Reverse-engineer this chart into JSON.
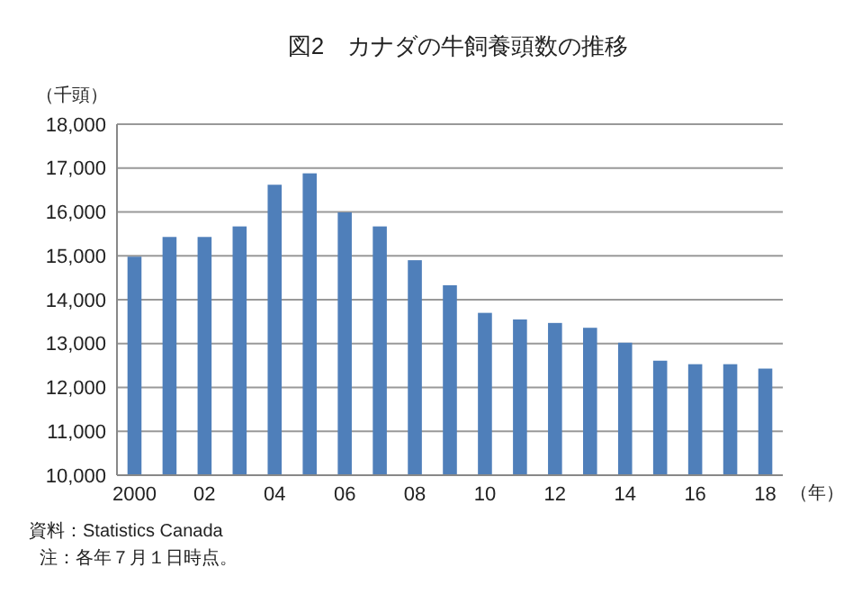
{
  "chart_data": {
    "type": "bar",
    "title": "図2　カナダの牛飼養頭数の推移",
    "ylabel": "（千頭）",
    "xlabel": "（年）",
    "categories": [
      "2000",
      null,
      "02",
      null,
      "04",
      null,
      "06",
      null,
      "08",
      null,
      "10",
      null,
      "12",
      null,
      "14",
      null,
      "16",
      null,
      "18"
    ],
    "values": [
      14980,
      15430,
      15430,
      15670,
      16620,
      16880,
      15990,
      15670,
      14900,
      14330,
      13700,
      13550,
      13470,
      13360,
      13020,
      12610,
      12530,
      12530,
      12430
    ],
    "color": "#4f7fba",
    "ylim": [
      10000,
      18000
    ],
    "yticks": [
      {
        "value": 10000,
        "label": "10,000"
      },
      {
        "value": 11000,
        "label": "11,000"
      },
      {
        "value": 12000,
        "label": "12,000"
      },
      {
        "value": 13000,
        "label": "13,000"
      },
      {
        "value": 14000,
        "label": "14,000"
      },
      {
        "value": 15000,
        "label": "15,000"
      },
      {
        "value": 16000,
        "label": "16,000"
      },
      {
        "value": 17000,
        "label": "17,000"
      },
      {
        "value": 18000,
        "label": "18,000"
      }
    ],
    "grid": "y",
    "annotations": [
      "資料：Statistics Canada",
      "注：各年７月１日時点。"
    ]
  }
}
